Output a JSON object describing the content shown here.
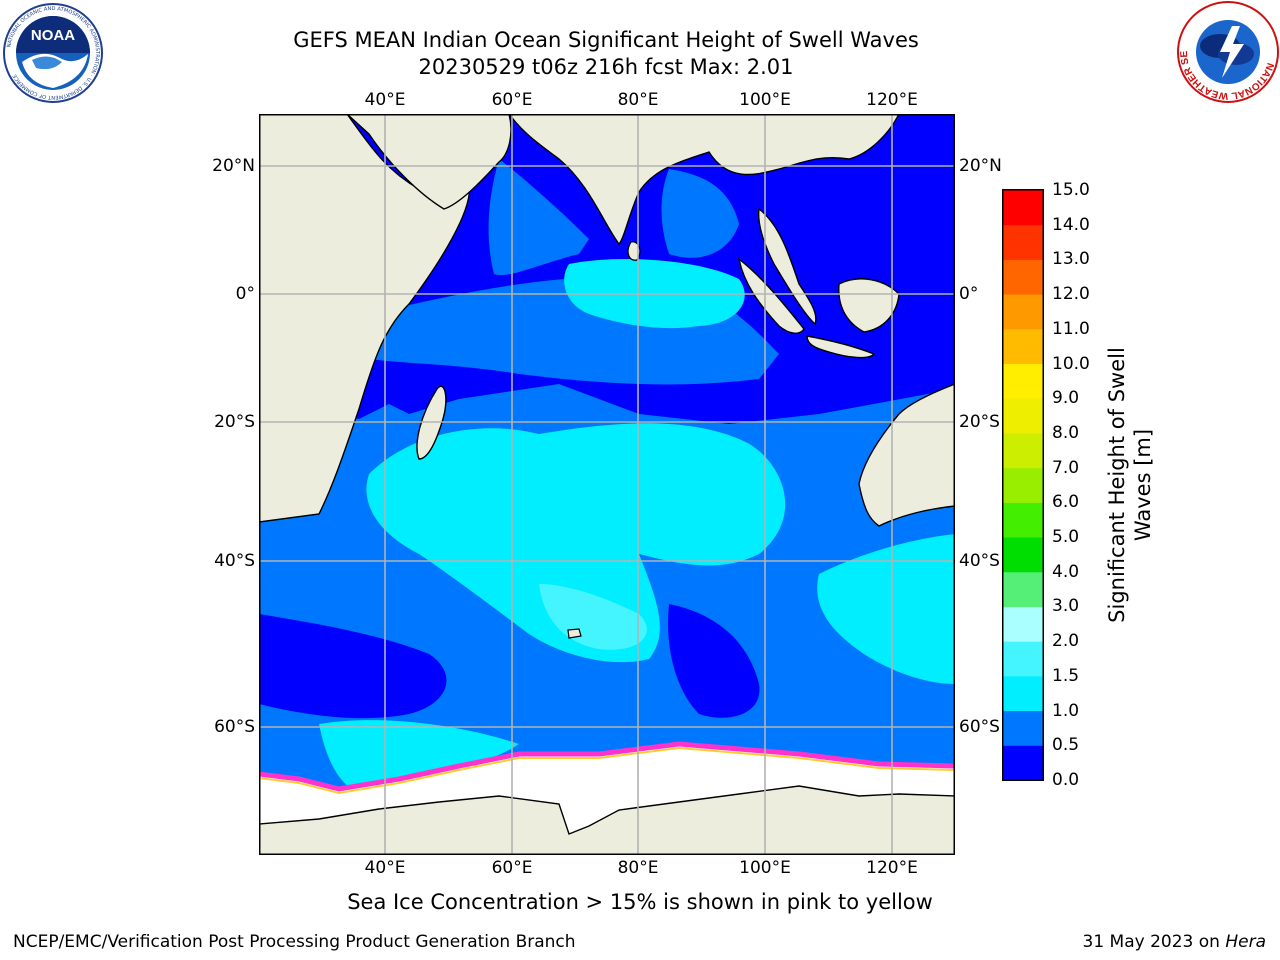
{
  "header": {
    "title_line1": "GEFS MEAN Indian Ocean Significant Height of Swell Waves",
    "title_line2": "20230529 t06z 216h fcst   Max: 2.01"
  },
  "logos": {
    "left": "NOAA",
    "left_ring": "NATIONAL OCEANIC AND ATMOSPHERIC ADMINISTRATION · U.S. DEPARTMENT OF COMMERCE",
    "right_ring": "NATIONAL WEATHER SERVICE"
  },
  "map": {
    "lon_ticks": [
      "40°E",
      "60°E",
      "80°E",
      "100°E",
      "120°E"
    ],
    "lat_ticks": [
      "20°N",
      "0°",
      "20°S",
      "40°S",
      "60°S"
    ],
    "lon_range": [
      20,
      130
    ],
    "lat_range": [
      -70,
      20
    ],
    "grid": true,
    "colors": {
      "land": "#ededde",
      "sea_ice": "#ffffff",
      "ice_edge": [
        "#ff33cc",
        "#ff66ff",
        "#ffcc33"
      ]
    }
  },
  "colorbar": {
    "label": "Significant Height of Swell Waves [m]",
    "label_line1": "Significant Height of Swell",
    "label_line2": "Waves [m]",
    "tick_labels": [
      "15.0",
      "14.0",
      "13.0",
      "12.0",
      "11.0",
      "10.0",
      "9.0",
      "8.0",
      "7.0",
      "6.0",
      "5.0",
      "4.0",
      "3.0",
      "2.0",
      "1.5",
      "1.0",
      "0.5",
      "0.0"
    ],
    "levels": [
      0.0,
      0.5,
      1.0,
      1.5,
      2.0,
      3.0,
      4.0,
      5.0,
      6.0,
      7.0,
      8.0,
      9.0,
      10.0,
      11.0,
      12.0,
      13.0,
      14.0,
      15.0
    ],
    "colors": [
      "#0000ff",
      "#0077ff",
      "#00eeff",
      "#44f5ff",
      "#aaffff",
      "#55ee77",
      "#00dd00",
      "#44ee00",
      "#99ee00",
      "#ccee00",
      "#eeee00",
      "#ffee00",
      "#ffbb00",
      "#ff9900",
      "#ff6600",
      "#ff3300",
      "#ff0000"
    ]
  },
  "caption": "Sea Ice Concentration > 15% is shown in pink to yellow",
  "footer": {
    "left": "NCEP/EMC/Verification Post Processing Product Generation Branch",
    "right_prefix": "31 May 2023 on ",
    "right_host": "Hera"
  }
}
